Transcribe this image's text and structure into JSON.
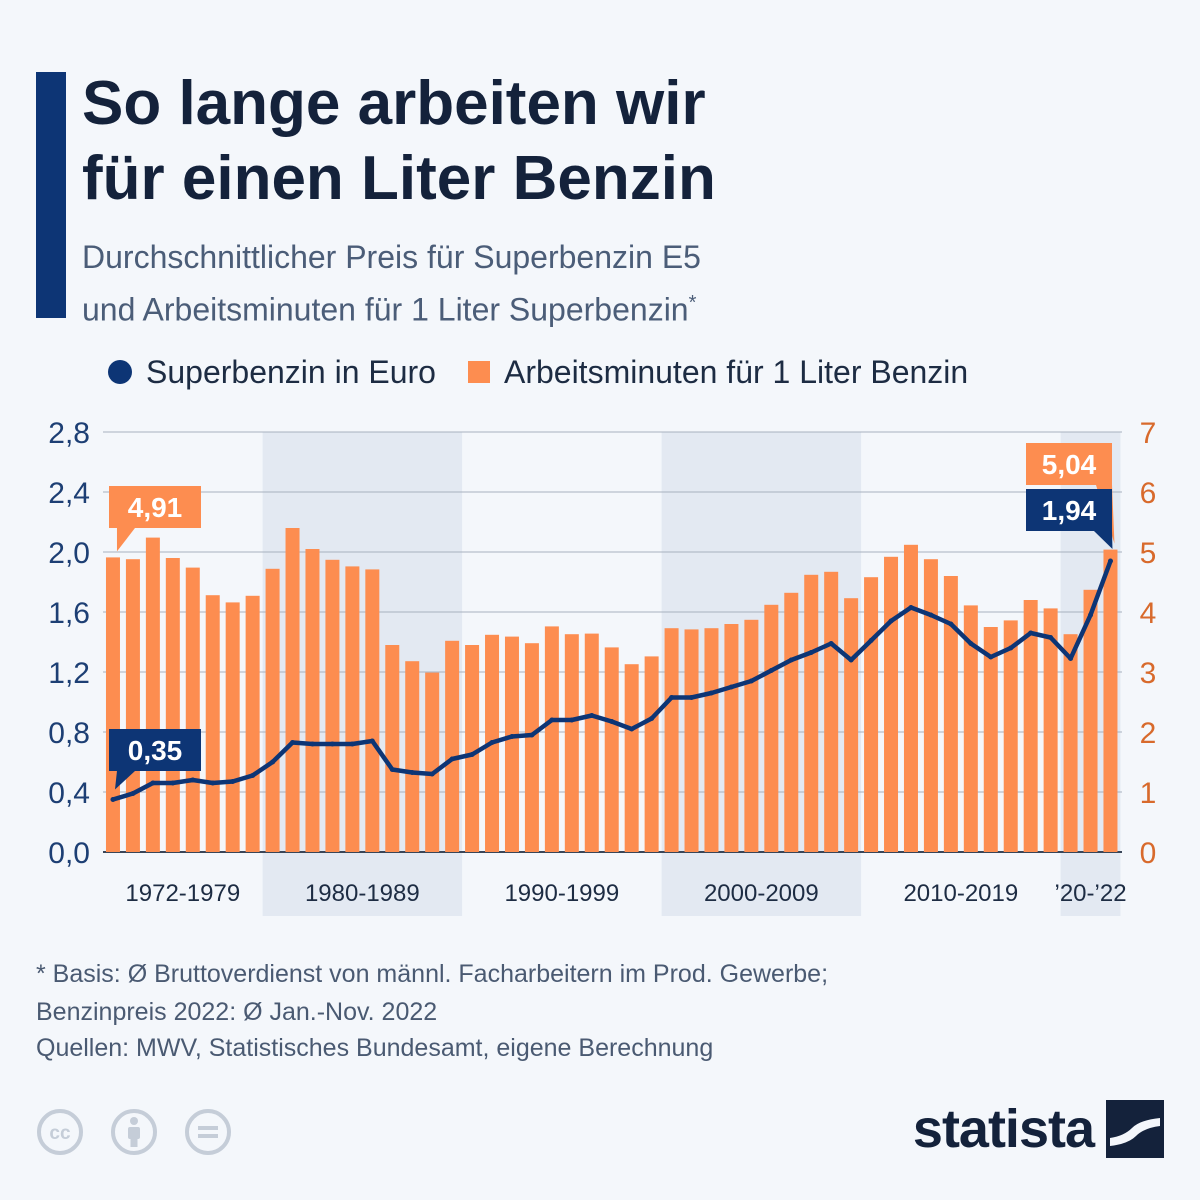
{
  "title": "So lange arbeiten wir\nfür einen Liter Benzin",
  "subtitle": {
    "line1": "Durchschnittlicher Preis für Superbenzin E5",
    "line2": "und Arbeitsminuten für 1 Liter Superbenzin",
    "marker": "*"
  },
  "legend": {
    "line_label": "Superbenzin in Euro",
    "bar_label": "Arbeitsminuten für 1 Liter Benzin"
  },
  "footnote": "* Basis: Ø Bruttoverdienst von männl. Facharbeitern im Prod. Gewerbe;\n   Benzinpreis 2022: Ø Jan.-Nov. 2022",
  "source": "Quellen: MWV, Statistisches Bundesamt, eigene Berechnung",
  "brand": "statista",
  "license_icons": [
    "cc-icon",
    "attribution-icon",
    "no-derivatives-icon"
  ],
  "colors": {
    "line": "#0d3575",
    "bars": "#fd8d50",
    "right_axis": "#d86a2c",
    "left_axis": "#1d3f74",
    "band": "#e3e9f2"
  },
  "chart_data": {
    "type": "bar",
    "x": [
      1972,
      1973,
      1974,
      1975,
      1976,
      1977,
      1978,
      1979,
      1980,
      1981,
      1982,
      1983,
      1984,
      1985,
      1986,
      1987,
      1988,
      1989,
      1990,
      1991,
      1992,
      1993,
      1994,
      1995,
      1996,
      1997,
      1998,
      1999,
      2000,
      2001,
      2002,
      2003,
      2004,
      2005,
      2006,
      2007,
      2008,
      2009,
      2010,
      2011,
      2012,
      2013,
      2014,
      2015,
      2016,
      2017,
      2018,
      2019,
      2020,
      2021,
      2022
    ],
    "series": [
      {
        "name": "Arbeitsminuten für 1 Liter Benzin",
        "type": "bar",
        "axis": "right",
        "values": [
          4.91,
          4.88,
          5.24,
          4.9,
          4.74,
          4.28,
          4.16,
          4.27,
          4.72,
          5.4,
          5.05,
          4.87,
          4.76,
          4.71,
          3.45,
          3.18,
          2.99,
          3.52,
          3.45,
          3.62,
          3.59,
          3.48,
          3.76,
          3.63,
          3.64,
          3.41,
          3.13,
          3.26,
          3.73,
          3.71,
          3.73,
          3.8,
          3.87,
          4.12,
          4.32,
          4.62,
          4.67,
          4.23,
          4.58,
          4.92,
          5.12,
          4.88,
          4.6,
          4.11,
          3.75,
          3.86,
          4.2,
          4.06,
          3.63,
          4.37,
          5.04
        ]
      },
      {
        "name": "Superbenzin in Euro",
        "type": "line",
        "axis": "left",
        "values": [
          0.35,
          0.39,
          0.46,
          0.46,
          0.48,
          0.46,
          0.47,
          0.51,
          0.6,
          0.73,
          0.72,
          0.72,
          0.72,
          0.74,
          0.55,
          0.53,
          0.52,
          0.62,
          0.65,
          0.73,
          0.77,
          0.78,
          0.88,
          0.88,
          0.91,
          0.87,
          0.82,
          0.89,
          1.03,
          1.03,
          1.06,
          1.1,
          1.14,
          1.21,
          1.28,
          1.33,
          1.39,
          1.28,
          1.41,
          1.54,
          1.63,
          1.58,
          1.52,
          1.39,
          1.3,
          1.36,
          1.46,
          1.43,
          1.29,
          1.58,
          1.94
        ]
      }
    ],
    "left_axis": {
      "ticks": [
        "0,0",
        "0,4",
        "0,8",
        "1,2",
        "1,6",
        "2,0",
        "2,4",
        "2,8"
      ],
      "range": [
        0,
        2.8
      ]
    },
    "right_axis": {
      "ticks": [
        "0",
        "1",
        "2",
        "3",
        "4",
        "5",
        "6",
        "7"
      ],
      "range": [
        0,
        7
      ]
    },
    "groups": [
      {
        "label": "1972-1979",
        "from": 1972,
        "to": 1979,
        "shaded": false
      },
      {
        "label": "1980-1989",
        "from": 1980,
        "to": 1989,
        "shaded": true
      },
      {
        "label": "1990-1999",
        "from": 1990,
        "to": 1999,
        "shaded": false
      },
      {
        "label": "2000-2009",
        "from": 2000,
        "to": 2009,
        "shaded": true
      },
      {
        "label": "2010-2019",
        "from": 2010,
        "to": 2019,
        "shaded": false
      },
      {
        "label": "’20-’22",
        "from": 2020,
        "to": 2022,
        "shaded": true
      }
    ],
    "annotations": [
      {
        "text": "4,91",
        "series": "Arbeitsminuten für 1 Liter Benzin",
        "year": 1972
      },
      {
        "text": "0,35",
        "series": "Superbenzin in Euro",
        "year": 1972
      },
      {
        "text": "5,04",
        "series": "Arbeitsminuten für 1 Liter Benzin",
        "year": 2022
      },
      {
        "text": "1,94",
        "series": "Superbenzin in Euro",
        "year": 2022
      }
    ],
    "grid": true
  }
}
